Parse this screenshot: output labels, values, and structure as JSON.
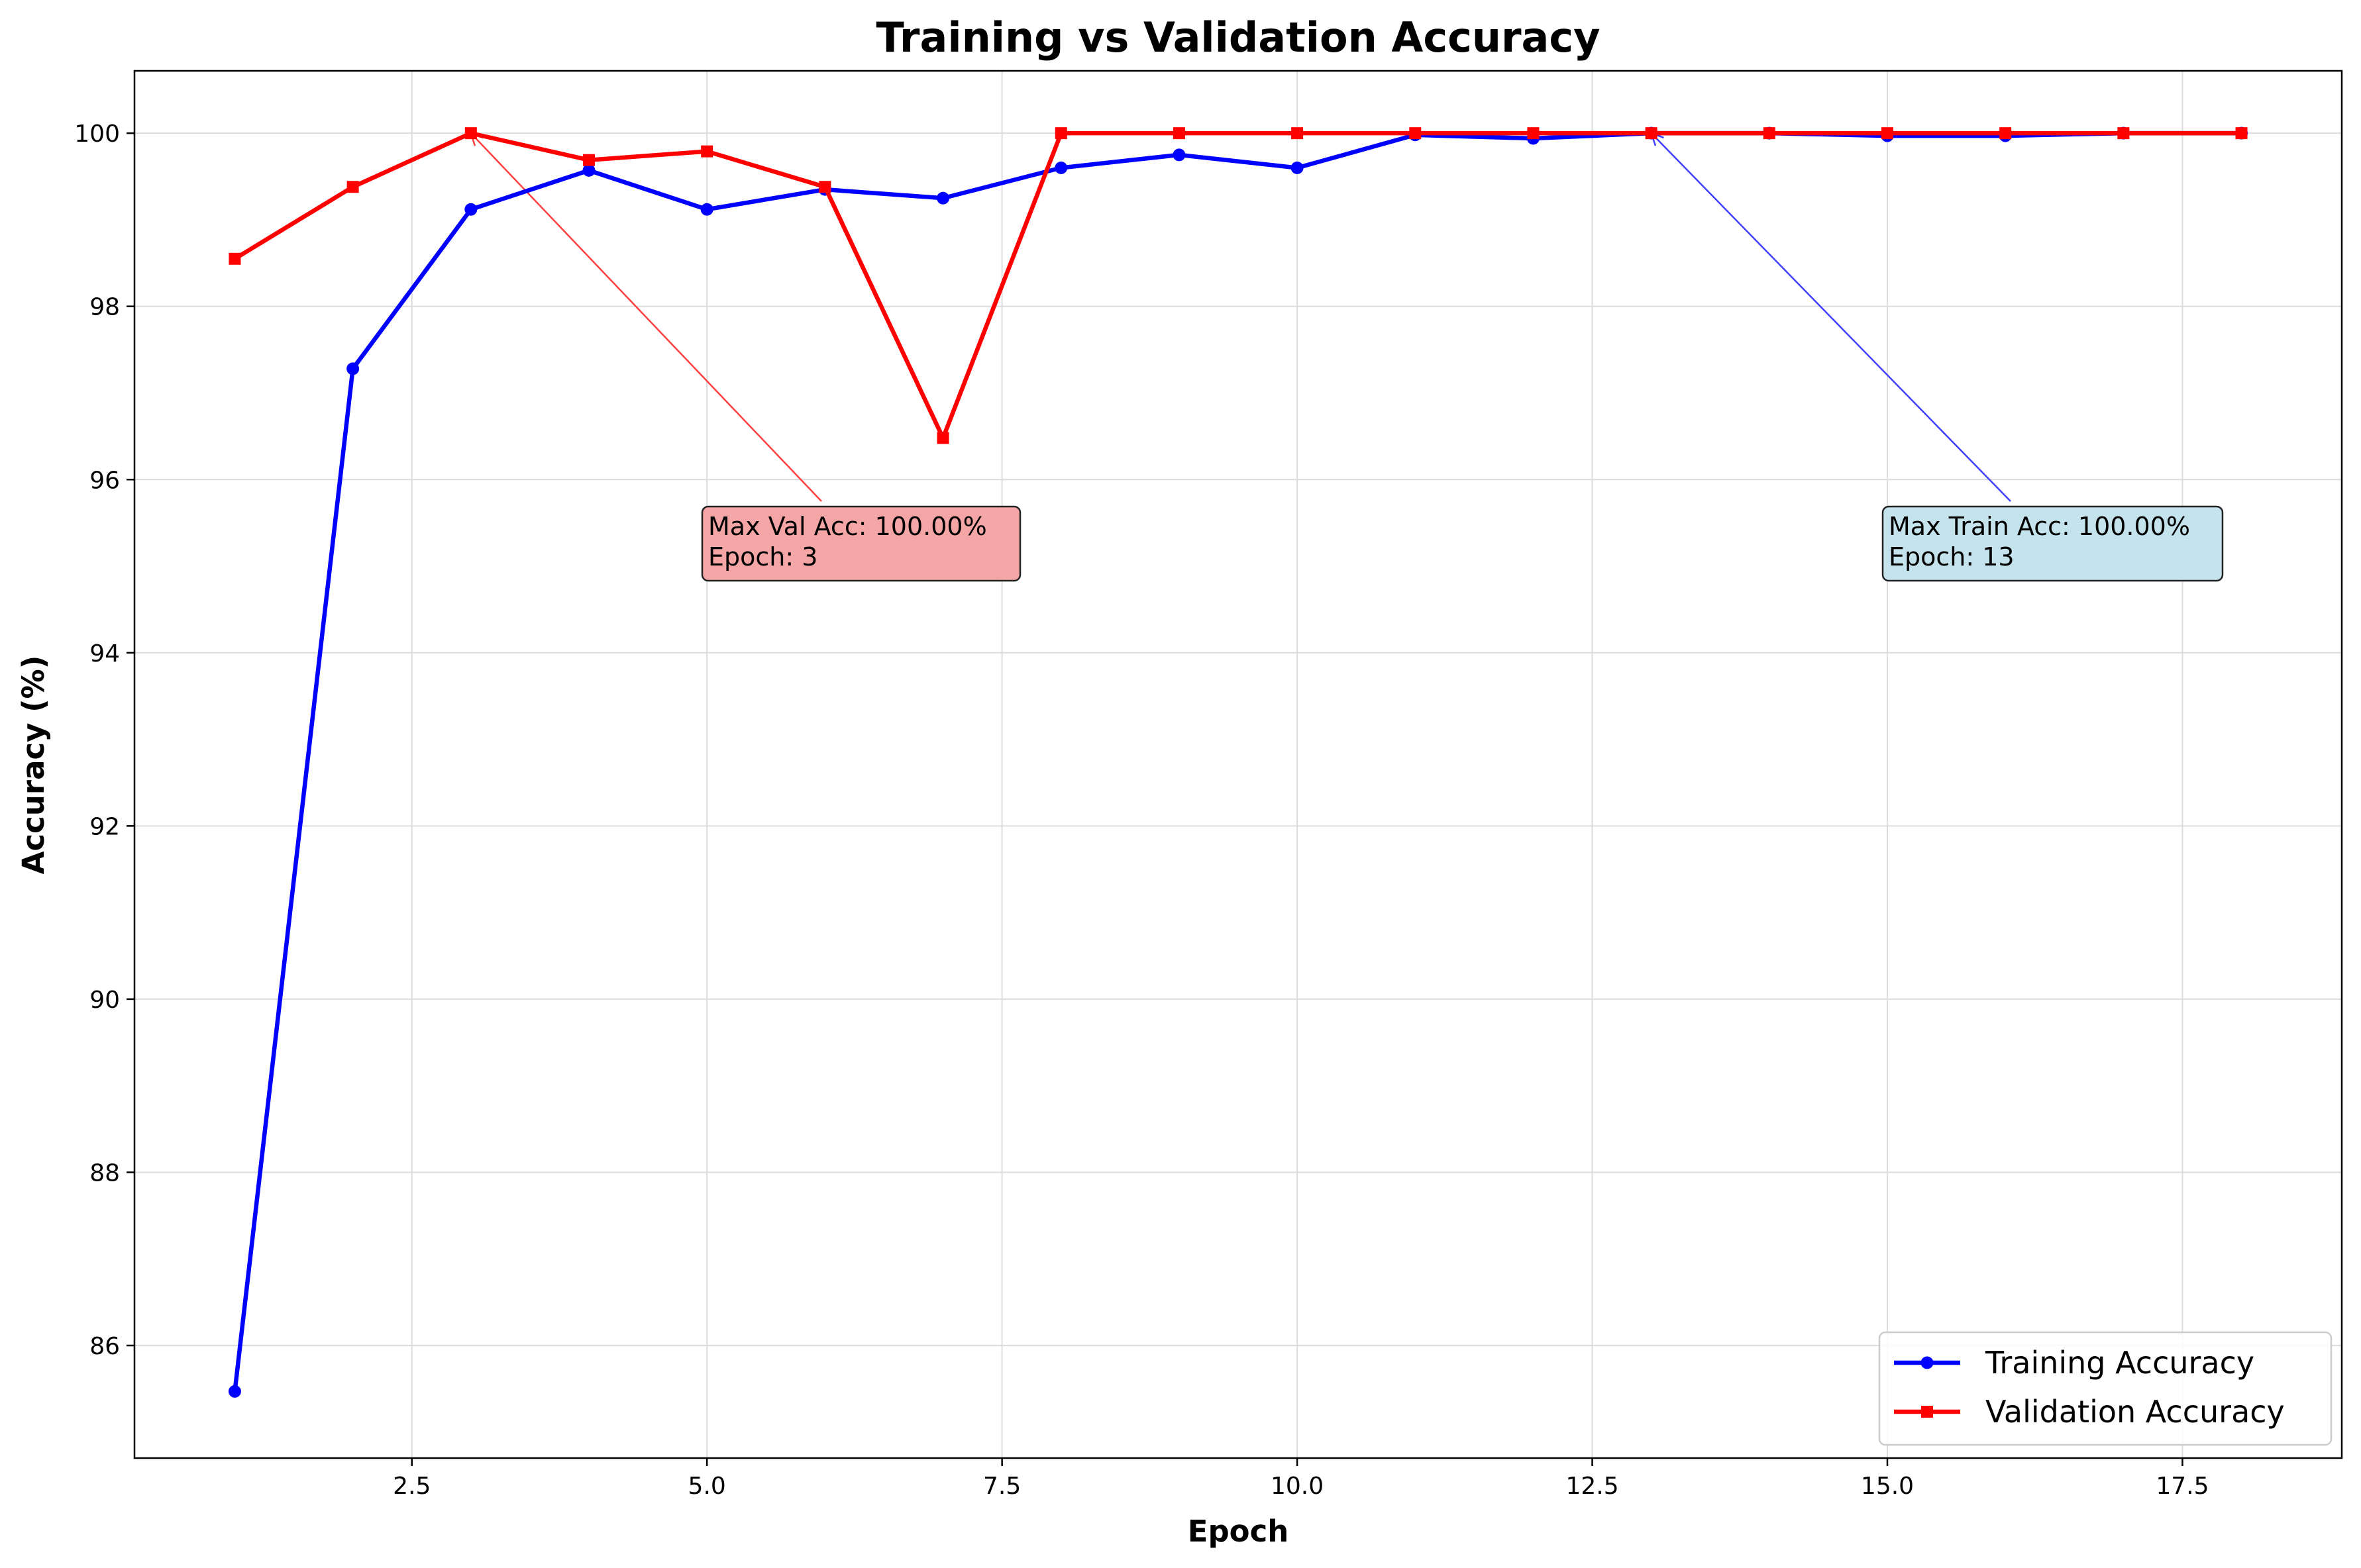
{
  "chart_data": {
    "type": "line",
    "title": "Training vs Validation Accuracy",
    "xlabel": "Epoch",
    "ylabel": "Accuracy (%)",
    "xlim": [
      0.15,
      18.85
    ],
    "ylim": [
      84.7,
      100.72
    ],
    "x_ticks": [
      2.5,
      5.0,
      7.5,
      10.0,
      12.5,
      15.0,
      17.5
    ],
    "x_tick_labels": [
      "2.5",
      "5.0",
      "7.5",
      "10.0",
      "12.5",
      "15.0",
      "17.5"
    ],
    "y_ticks": [
      86,
      88,
      90,
      92,
      94,
      96,
      98,
      100
    ],
    "y_tick_labels": [
      "86",
      "88",
      "90",
      "92",
      "94",
      "96",
      "98",
      "100"
    ],
    "grid": true,
    "legend_position": "bottom-right",
    "x": [
      1,
      2,
      3,
      4,
      5,
      6,
      7,
      8,
      9,
      10,
      11,
      12,
      13,
      14,
      15,
      16,
      17,
      18
    ],
    "series": [
      {
        "name": "Training Accuracy",
        "color": "#0000ff",
        "marker": "circle",
        "values": [
          85.47,
          97.28,
          99.12,
          99.57,
          99.12,
          99.35,
          99.25,
          99.6,
          99.75,
          99.6,
          99.98,
          99.94,
          100.0,
          100.0,
          99.97,
          99.97,
          100.0,
          100.0
        ]
      },
      {
        "name": "Validation Accuracy",
        "color": "#ff0000",
        "marker": "square",
        "values": [
          98.55,
          99.38,
          100.0,
          99.69,
          99.79,
          99.38,
          96.48,
          100.0,
          100.0,
          100.0,
          100.0,
          100.0,
          100.0,
          100.0,
          100.0,
          100.0,
          100.0,
          100.0
        ]
      }
    ],
    "annotations": [
      {
        "lines": [
          "Max Val Acc: 100.00%",
          "Epoch: 3"
        ],
        "target_x": 3,
        "target_y": 100.0,
        "box_color": "#f4a6a6",
        "arrow_color": "#ff4040"
      },
      {
        "lines": [
          "Max Train Acc: 100.00%",
          "Epoch: 13"
        ],
        "target_x": 13,
        "target_y": 100.0,
        "box_color": "#c5e3ec",
        "arrow_color": "#4040ff"
      }
    ]
  }
}
